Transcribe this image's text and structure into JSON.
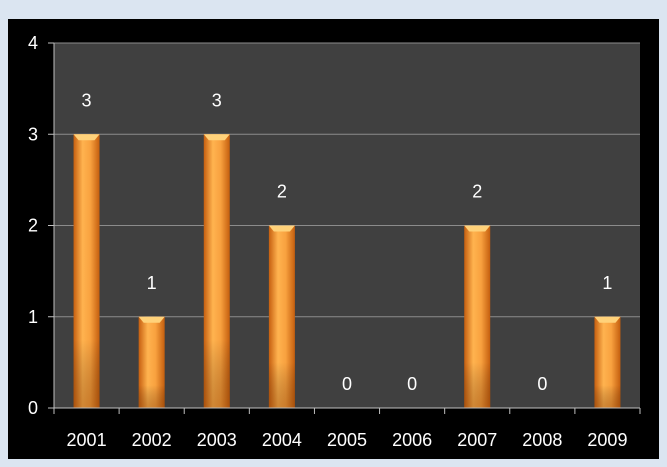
{
  "chart_data": {
    "type": "bar",
    "title": "",
    "xlabel": "",
    "ylabel": "",
    "categories": [
      "2001",
      "2002",
      "2003",
      "2004",
      "2005",
      "2006",
      "2007",
      "2008",
      "2009"
    ],
    "values": [
      3,
      1,
      3,
      2,
      0,
      0,
      2,
      0,
      1
    ],
    "data_labels": [
      "3",
      "1",
      "3",
      "2",
      "0",
      "0",
      "2",
      "0",
      "1"
    ],
    "ylim": [
      0,
      4
    ],
    "yticks": [
      "0",
      "1",
      "2",
      "3",
      "4"
    ],
    "grid": true,
    "legend": "none",
    "colors": {
      "page_background": "#dbe5f1",
      "chart_background": "#000000",
      "plot_background": "#404040",
      "bar": "#f39c33",
      "gridline": "#8c8c8c",
      "text": "#ffffff"
    }
  }
}
